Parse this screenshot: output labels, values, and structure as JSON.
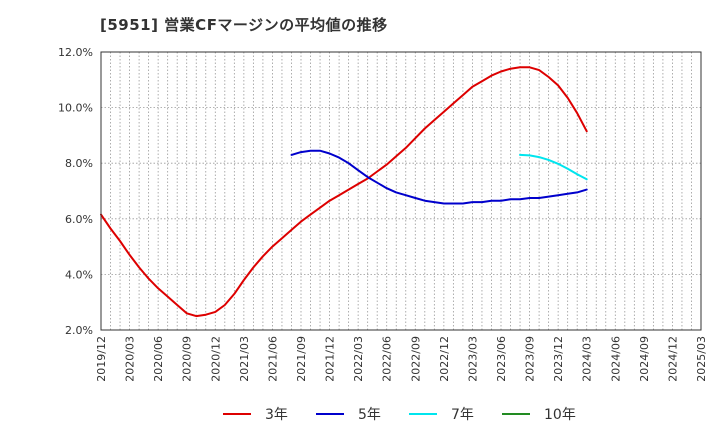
{
  "chart_data": {
    "type": "line",
    "title": "[5951]  営業CFマージンの平均値の推移",
    "xlabel": "",
    "ylabel": "",
    "ylim": [
      2.0,
      12.0
    ],
    "y_ticks": [
      "2.0%",
      "4.0%",
      "6.0%",
      "8.0%",
      "10.0%",
      "12.0%"
    ],
    "y_tick_values": [
      2,
      4,
      6,
      8,
      10,
      12
    ],
    "x_ticks": [
      "2019/12",
      "2020/03",
      "2020/06",
      "2020/09",
      "2020/12",
      "2021/03",
      "2021/06",
      "2021/09",
      "2021/12",
      "2022/03",
      "2022/06",
      "2022/09",
      "2022/12",
      "2023/03",
      "2023/06",
      "2023/09",
      "2023/12",
      "2024/03",
      "2024/06",
      "2024/09",
      "2024/12",
      "2025/03"
    ],
    "grid": true,
    "legend_position": "bottom",
    "series": [
      {
        "name": "3年",
        "color": "#dd0000",
        "points": [
          [
            "2019/12",
            6.15
          ],
          [
            "2020/01",
            5.65
          ],
          [
            "2020/02",
            5.2
          ],
          [
            "2020/03",
            4.7
          ],
          [
            "2020/04",
            4.25
          ],
          [
            "2020/05",
            3.85
          ],
          [
            "2020/06",
            3.5
          ],
          [
            "2020/07",
            3.2
          ],
          [
            "2020/08",
            2.9
          ],
          [
            "2020/09",
            2.6
          ],
          [
            "2020/10",
            2.5
          ],
          [
            "2020/11",
            2.55
          ],
          [
            "2020/12",
            2.65
          ],
          [
            "2021/01",
            2.9
          ],
          [
            "2021/02",
            3.3
          ],
          [
            "2021/03",
            3.8
          ],
          [
            "2021/04",
            4.25
          ],
          [
            "2021/05",
            4.65
          ],
          [
            "2021/06",
            5.0
          ],
          [
            "2021/07",
            5.3
          ],
          [
            "2021/08",
            5.6
          ],
          [
            "2021/09",
            5.9
          ],
          [
            "2021/10",
            6.15
          ],
          [
            "2021/11",
            6.4
          ],
          [
            "2021/12",
            6.65
          ],
          [
            "2022/01",
            6.85
          ],
          [
            "2022/02",
            7.05
          ],
          [
            "2022/03",
            7.25
          ],
          [
            "2022/04",
            7.45
          ],
          [
            "2022/05",
            7.7
          ],
          [
            "2022/06",
            7.95
          ],
          [
            "2022/07",
            8.25
          ],
          [
            "2022/08",
            8.55
          ],
          [
            "2022/09",
            8.9
          ],
          [
            "2022/10",
            9.25
          ],
          [
            "2022/11",
            9.55
          ],
          [
            "2022/12",
            9.85
          ],
          [
            "2023/01",
            10.15
          ],
          [
            "2023/02",
            10.45
          ],
          [
            "2023/03",
            10.75
          ],
          [
            "2023/04",
            10.95
          ],
          [
            "2023/05",
            11.15
          ],
          [
            "2023/06",
            11.3
          ],
          [
            "2023/07",
            11.4
          ],
          [
            "2023/08",
            11.45
          ],
          [
            "2023/09",
            11.45
          ],
          [
            "2023/10",
            11.35
          ],
          [
            "2023/11",
            11.1
          ],
          [
            "2023/12",
            10.8
          ],
          [
            "2024/01",
            10.35
          ],
          [
            "2024/02",
            9.8
          ],
          [
            "2024/03",
            9.15
          ]
        ]
      },
      {
        "name": "5年",
        "color": "#0000cc",
        "points": [
          [
            "2021/08",
            8.3
          ],
          [
            "2021/09",
            8.4
          ],
          [
            "2021/10",
            8.45
          ],
          [
            "2021/11",
            8.45
          ],
          [
            "2021/12",
            8.35
          ],
          [
            "2022/01",
            8.2
          ],
          [
            "2022/02",
            8.0
          ],
          [
            "2022/03",
            7.75
          ],
          [
            "2022/04",
            7.5
          ],
          [
            "2022/05",
            7.3
          ],
          [
            "2022/06",
            7.1
          ],
          [
            "2022/07",
            6.95
          ],
          [
            "2022/08",
            6.85
          ],
          [
            "2022/09",
            6.75
          ],
          [
            "2022/10",
            6.65
          ],
          [
            "2022/11",
            6.6
          ],
          [
            "2022/12",
            6.55
          ],
          [
            "2023/01",
            6.55
          ],
          [
            "2023/02",
            6.55
          ],
          [
            "2023/03",
            6.6
          ],
          [
            "2023/04",
            6.6
          ],
          [
            "2023/05",
            6.65
          ],
          [
            "2023/06",
            6.65
          ],
          [
            "2023/07",
            6.7
          ],
          [
            "2023/08",
            6.7
          ],
          [
            "2023/09",
            6.75
          ],
          [
            "2023/10",
            6.75
          ],
          [
            "2023/11",
            6.8
          ],
          [
            "2023/12",
            6.85
          ],
          [
            "2024/01",
            6.9
          ],
          [
            "2024/02",
            6.95
          ],
          [
            "2024/03",
            7.05
          ]
        ]
      },
      {
        "name": "7年",
        "color": "#00e5ee",
        "points": [
          [
            "2023/08",
            8.3
          ],
          [
            "2023/09",
            8.28
          ],
          [
            "2023/10",
            8.22
          ],
          [
            "2023/11",
            8.12
          ],
          [
            "2023/12",
            7.98
          ],
          [
            "2024/01",
            7.8
          ],
          [
            "2024/02",
            7.6
          ],
          [
            "2024/03",
            7.42
          ]
        ]
      },
      {
        "name": "10年",
        "color": "#228b22",
        "points": []
      }
    ]
  }
}
